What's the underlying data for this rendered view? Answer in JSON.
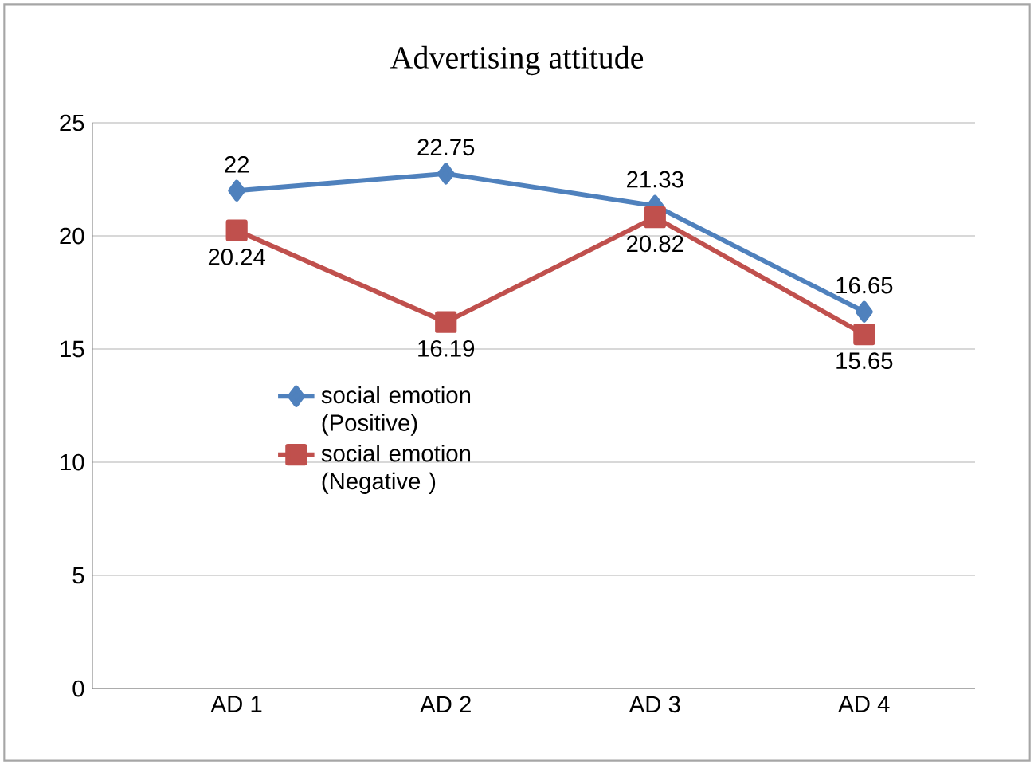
{
  "chart_data": {
    "type": "line",
    "title": "Advertising attitude",
    "categories": [
      "AD 1",
      "AD 2",
      "AD 3",
      "AD 4"
    ],
    "series": [
      {
        "name": "social emotion (Positive)",
        "color": "#4f81bd",
        "marker": "diamond",
        "values": [
          22,
          22.75,
          21.33,
          16.65
        ]
      },
      {
        "name": "social emotion (Negative )",
        "color": "#c0504d",
        "marker": "square",
        "values": [
          20.24,
          16.19,
          20.82,
          15.65
        ]
      }
    ],
    "ylim": [
      0,
      25
    ],
    "yticks": [
      0,
      5,
      10,
      15,
      20,
      25
    ],
    "grid": "y",
    "legend": "left",
    "data_labels": true,
    "line_style": "solid"
  }
}
